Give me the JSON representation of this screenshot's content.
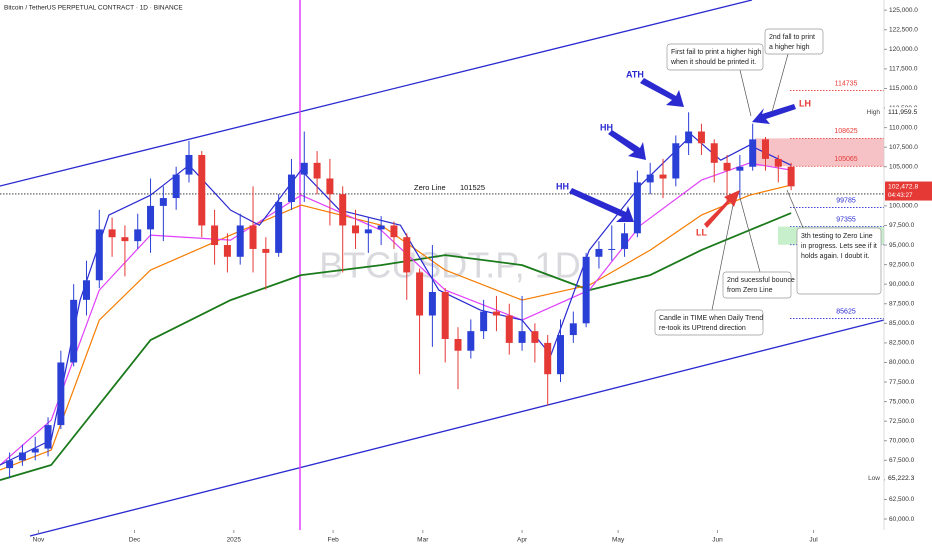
{
  "chart_data": {
    "type": "candlestick",
    "title": "Bitcoin / TetherUS PERPETUAL CONTRACT · 1D · BINANCE",
    "watermark": "BTCUSDT.P, 1D",
    "up_color": "#2a3fd6",
    "down_color": "#e53935",
    "grid": false,
    "xlim": [
      19,
      295
    ],
    "xticks": [
      {
        "value": 31,
        "label": "Nov"
      },
      {
        "value": 61,
        "label": "Dec"
      },
      {
        "value": 92,
        "label": "2025"
      },
      {
        "value": 123,
        "label": "Feb"
      },
      {
        "value": 151,
        "label": "Mar"
      },
      {
        "value": 182,
        "label": "Apr"
      },
      {
        "value": 212,
        "label": "May"
      },
      {
        "value": 243,
        "label": "Jun"
      },
      {
        "value": 273,
        "label": "Jul"
      }
    ],
    "ylim": [
      58600,
      126300
    ],
    "yticks": [
      {
        "value": 60000,
        "label": "60,000.0"
      },
      {
        "value": 62500,
        "label": "62,500.0"
      },
      {
        "value": 65000,
        "label": "65,000.0"
      },
      {
        "value": 67500,
        "label": "67,500.0"
      },
      {
        "value": 70000,
        "label": "70,000.0"
      },
      {
        "value": 72500,
        "label": "72,500.0"
      },
      {
        "value": 75000,
        "label": "75,000.0"
      },
      {
        "value": 77500,
        "label": "77,500.0"
      },
      {
        "value": 80000,
        "label": "80,000.0"
      },
      {
        "value": 82500,
        "label": "82,500.0"
      },
      {
        "value": 85000,
        "label": "85,000.0"
      },
      {
        "value": 87500,
        "label": "87,500.0"
      },
      {
        "value": 90000,
        "label": "90,000.0"
      },
      {
        "value": 92500,
        "label": "92,500.0"
      },
      {
        "value": 95000,
        "label": "95,000.0"
      },
      {
        "value": 97500,
        "label": "97,500.0"
      },
      {
        "value": 100000,
        "label": "100,000.0"
      },
      {
        "value": 105000,
        "label": "105,000.0"
      },
      {
        "value": 107500,
        "label": "107,500.0"
      },
      {
        "value": 110000,
        "label": "110,000.0"
      },
      {
        "value": 112500,
        "label": "112,500.0"
      },
      {
        "value": 115000,
        "label": "115,000.0"
      },
      {
        "value": 117500,
        "label": "117,500.0"
      },
      {
        "value": 120000,
        "label": "120,000.0"
      },
      {
        "value": 122500,
        "label": "122,500.0"
      },
      {
        "value": 125000,
        "label": "125,000.0"
      }
    ],
    "x": [
      22,
      26,
      30,
      34,
      38,
      42,
      46,
      50,
      54,
      58,
      62,
      66,
      70,
      74,
      78,
      82,
      86,
      90,
      94,
      98,
      102,
      106,
      110,
      114,
      118,
      122,
      126,
      130,
      134,
      138,
      142,
      146,
      150,
      154,
      158,
      162,
      166,
      170,
      174,
      178,
      182,
      186,
      190,
      194,
      198,
      202,
      206,
      210,
      214,
      218,
      222,
      226,
      230,
      234,
      238,
      242,
      246,
      250,
      254,
      258,
      262,
      266
    ],
    "open": [
      66500,
      67500,
      68500,
      69000,
      72000,
      80000,
      88000,
      90500,
      97000,
      96000,
      95500,
      97000,
      100000,
      101000,
      104000,
      106500,
      97500,
      95000,
      93500,
      97500,
      94500,
      94000,
      100500,
      104000,
      105500,
      103500,
      101500,
      97500,
      96500,
      97000,
      97500,
      96000,
      91500,
      86000,
      89000,
      83000,
      81500,
      84000,
      86500,
      86000,
      82500,
      84000,
      82500,
      78500,
      83500,
      85000,
      93500,
      94500,
      94500,
      96500,
      103000,
      104000,
      103500,
      108000,
      109500,
      108000,
      105500,
      104500,
      105000,
      108500,
      106000,
      105000
    ],
    "high": [
      68500,
      69500,
      70500,
      73000,
      81500,
      90000,
      93000,
      99500,
      98500,
      97500,
      99000,
      103500,
      102500,
      105000,
      108300,
      107000,
      99500,
      96500,
      99000,
      102500,
      96000,
      101500,
      106000,
      109500,
      107000,
      106000,
      102500,
      99500,
      98500,
      98700,
      98000,
      96500,
      92000,
      95000,
      89500,
      84500,
      85500,
      88000,
      88500,
      87500,
      88500,
      85000,
      83500,
      85500,
      86500,
      94000,
      95500,
      97500,
      97800,
      104500,
      105500,
      106000,
      109000,
      111960,
      110500,
      108500,
      106500,
      106500,
      110500,
      108800,
      106500,
      105500
    ],
    "low": [
      65200,
      66800,
      67500,
      68000,
      71500,
      79500,
      86000,
      89500,
      93500,
      91000,
      94500,
      94000,
      95500,
      99500,
      103000,
      96000,
      92500,
      91500,
      92500,
      91500,
      89300,
      93500,
      99500,
      100500,
      101500,
      97500,
      91500,
      94500,
      94000,
      95000,
      94500,
      88000,
      78500,
      82000,
      80000,
      76600,
      80500,
      83000,
      84000,
      81000,
      81500,
      80000,
      74500,
      77500,
      82500,
      84500,
      92000,
      93000,
      93500,
      96000,
      101500,
      101000,
      102500,
      106500,
      106500,
      103000,
      100500,
      101000,
      104500,
      104500,
      103000,
      102000
    ],
    "close": [
      67500,
      68500,
      69000,
      72000,
      80000,
      88000,
      90500,
      97000,
      96000,
      95500,
      97000,
      100000,
      101000,
      104000,
      106500,
      97500,
      95000,
      93500,
      97500,
      94500,
      94000,
      100500,
      104000,
      105500,
      103500,
      101500,
      97500,
      96500,
      97000,
      97500,
      96000,
      91500,
      86000,
      89000,
      83000,
      81500,
      84000,
      86500,
      86000,
      82500,
      84000,
      82500,
      78500,
      83500,
      85000,
      93500,
      94500,
      94500,
      96500,
      103000,
      104000,
      103500,
      108000,
      109500,
      108000,
      105500,
      104500,
      105000,
      108500,
      106000,
      105000,
      102500
    ],
    "overlays": [
      {
        "color": "#1b7a1b",
        "x": [
          19,
          35,
          66,
          91,
          113,
          138,
          158,
          182,
          203,
          222,
          238,
          253,
          266
        ],
        "values": [
          64980,
          66900,
          82860,
          87970,
          91160,
          92440,
          93710,
          92440,
          89240,
          91160,
          94350,
          96900,
          99080
        ]
      },
      {
        "color": "#f57c00",
        "x": [
          19,
          35,
          50,
          66,
          91,
          113,
          138,
          158,
          182,
          203,
          222,
          238,
          253,
          266
        ],
        "values": [
          66260,
          68810,
          85410,
          91800,
          96270,
          100100,
          97540,
          91800,
          87970,
          89880,
          94350,
          98820,
          101370,
          102650
        ]
      },
      {
        "color": "#e040fb",
        "x": [
          19,
          35,
          50,
          66,
          91,
          113,
          138,
          158,
          182,
          203,
          219,
          238,
          253,
          266
        ],
        "values": [
          66900,
          72640,
          89240,
          96270,
          95630,
          101370,
          96900,
          89240,
          85410,
          89240,
          97540,
          103290,
          105460,
          104570
        ]
      },
      {
        "color": "#2a2ad0",
        "x": [
          19,
          35,
          44,
          53,
          66,
          78,
          91,
          100,
          113,
          125,
          144,
          156,
          169,
          182,
          191,
          203,
          219,
          235,
          244,
          253,
          266
        ],
        "values": [
          66900,
          70090,
          87970,
          98820,
          101370,
          105200,
          99460,
          97540,
          104570,
          99460,
          97540,
          89240,
          86690,
          85410,
          80940,
          94350,
          102650,
          109040,
          105840,
          107750,
          105200
        ]
      }
    ],
    "zero_line": {
      "label": "Zero Line",
      "value": 101525
    },
    "levels": [
      {
        "value": 114735,
        "color": "#e53935"
      },
      {
        "value": 108625,
        "color": "#e53935",
        "zone_color": "#f7c2c6"
      },
      {
        "value": 105065,
        "color": "#e53935"
      },
      {
        "value": 99785,
        "color": "#2a2ad0"
      },
      {
        "value": 97355,
        "color": "#2a2ad0",
        "zone_color": "#c8efcc"
      },
      {
        "value": 95035,
        "color": "#2a2ad0"
      },
      {
        "value": 85625,
        "color": "#2a2ad0"
      }
    ],
    "price_tags": [
      {
        "name": "High",
        "value": 111959.5,
        "label": "111,959.5",
        "color": "#ffffff"
      },
      {
        "value": 102472.8,
        "label": "102,472.8",
        "timer": "04:43:27",
        "color": "#e53935"
      },
      {
        "name": "Low",
        "value": 65222.3,
        "label": "65,222.3",
        "color": "#ffffff"
      }
    ]
  },
  "annotations": [
    "HH",
    "HH",
    "ATH",
    "LH",
    "LL"
  ],
  "callouts": [
    [
      "First fail to print a higher high",
      "when it should be printed it."
    ],
    [
      "2nd fall to print",
      "a higher high"
    ],
    [
      "2nd sucessful bounce",
      "from Zero Line"
    ],
    [
      "3th testing to Zero Line",
      "in progress. Lets see if it",
      "holds again. I doubt it."
    ],
    [
      "Candle in TIME when Daily Trend",
      "re-took its UPtrend direction"
    ]
  ]
}
